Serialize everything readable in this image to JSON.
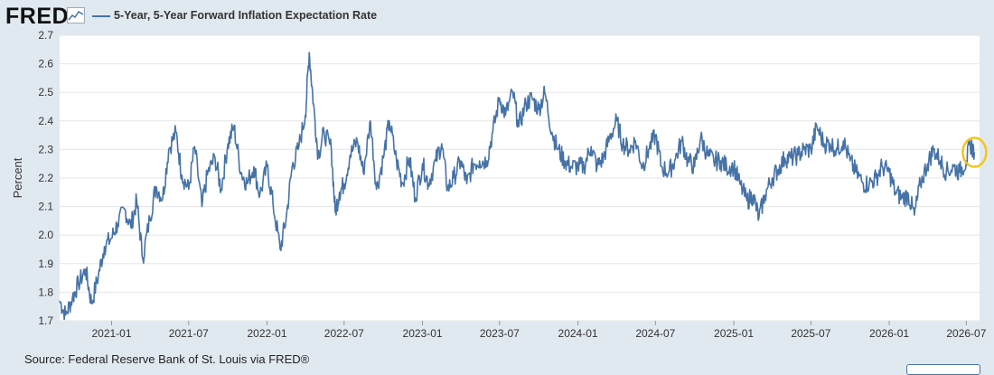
{
  "brand": {
    "logo_text": "FRED",
    "trend_icon": "line-chart-icon"
  },
  "legend": {
    "label": "5-Year, 5-Year Forward Inflation Expectation Rate",
    "color": "#4572a7"
  },
  "highlight": {
    "color": "#f5c518",
    "note": "circled latest value"
  },
  "source": {
    "text": "Source: Federal Reserve Bank of St. Louis via FRED®"
  },
  "chart_data": {
    "type": "line",
    "title": "",
    "xlabel": "",
    "ylabel": "Percent",
    "ylim": [
      1.7,
      2.7
    ],
    "yticks": [
      "1.7",
      "1.8",
      "1.9",
      "2.0",
      "2.1",
      "2.2",
      "2.3",
      "2.4",
      "2.5",
      "2.6",
      "2.7"
    ],
    "xticks": [
      "2021-01",
      "2021-07",
      "2022-01",
      "2022-07",
      "2023-01",
      "2023-07",
      "2024-01",
      "2024-07",
      "2025-01",
      "2025-07",
      "2026-01",
      "2026-07"
    ],
    "xrange": [
      "2020-09",
      "2026-08"
    ],
    "grid": "horizontal",
    "series": [
      {
        "name": "5-Year, 5-Year Forward Inflation Expectation Rate",
        "color": "#4572a7",
        "points": [
          [
            "2020-09-01",
            1.77
          ],
          [
            "2020-09-15",
            1.72
          ],
          [
            "2020-10-01",
            1.78
          ],
          [
            "2020-10-15",
            1.83
          ],
          [
            "2020-11-01",
            1.88
          ],
          [
            "2020-11-15",
            1.76
          ],
          [
            "2020-12-01",
            1.86
          ],
          [
            "2020-12-15",
            1.96
          ],
          [
            "2021-01-01",
            1.99
          ],
          [
            "2021-01-15",
            2.04
          ],
          [
            "2021-02-01",
            2.09
          ],
          [
            "2021-02-15",
            2.03
          ],
          [
            "2021-03-01",
            2.12
          ],
          [
            "2021-03-15",
            1.92
          ],
          [
            "2021-04-01",
            2.06
          ],
          [
            "2021-04-15",
            2.17
          ],
          [
            "2021-05-01",
            2.13
          ],
          [
            "2021-05-15",
            2.3
          ],
          [
            "2021-06-01",
            2.36
          ],
          [
            "2021-06-15",
            2.21
          ],
          [
            "2021-07-01",
            2.16
          ],
          [
            "2021-07-15",
            2.31
          ],
          [
            "2021-08-01",
            2.1
          ],
          [
            "2021-08-15",
            2.22
          ],
          [
            "2021-09-01",
            2.27
          ],
          [
            "2021-09-15",
            2.16
          ],
          [
            "2021-10-01",
            2.32
          ],
          [
            "2021-10-15",
            2.38
          ],
          [
            "2021-11-01",
            2.22
          ],
          [
            "2021-11-15",
            2.18
          ],
          [
            "2021-12-01",
            2.24
          ],
          [
            "2021-12-15",
            2.14
          ],
          [
            "2022-01-01",
            2.24
          ],
          [
            "2022-01-15",
            2.11
          ],
          [
            "2022-02-01",
            1.95
          ],
          [
            "2022-02-15",
            2.06
          ],
          [
            "2022-03-01",
            2.24
          ],
          [
            "2022-03-15",
            2.3
          ],
          [
            "2022-04-01",
            2.42
          ],
          [
            "2022-04-10",
            2.64
          ],
          [
            "2022-04-20",
            2.46
          ],
          [
            "2022-05-01",
            2.28
          ],
          [
            "2022-05-15",
            2.36
          ],
          [
            "2022-06-01",
            2.3
          ],
          [
            "2022-06-10",
            2.08
          ],
          [
            "2022-06-20",
            2.15
          ],
          [
            "2022-07-01",
            2.18
          ],
          [
            "2022-07-15",
            2.28
          ],
          [
            "2022-08-01",
            2.33
          ],
          [
            "2022-08-15",
            2.22
          ],
          [
            "2022-09-01",
            2.4
          ],
          [
            "2022-09-15",
            2.16
          ],
          [
            "2022-10-01",
            2.27
          ],
          [
            "2022-10-15",
            2.4
          ],
          [
            "2022-11-01",
            2.26
          ],
          [
            "2022-11-15",
            2.18
          ],
          [
            "2022-12-01",
            2.27
          ],
          [
            "2022-12-15",
            2.13
          ],
          [
            "2023-01-01",
            2.25
          ],
          [
            "2023-01-15",
            2.18
          ],
          [
            "2023-02-01",
            2.26
          ],
          [
            "2023-02-15",
            2.32
          ],
          [
            "2023-03-01",
            2.16
          ],
          [
            "2023-03-15",
            2.2
          ],
          [
            "2023-04-01",
            2.26
          ],
          [
            "2023-04-15",
            2.18
          ],
          [
            "2023-05-01",
            2.25
          ],
          [
            "2023-05-15",
            2.26
          ],
          [
            "2023-06-01",
            2.26
          ],
          [
            "2023-06-15",
            2.36
          ],
          [
            "2023-07-01",
            2.48
          ],
          [
            "2023-07-15",
            2.42
          ],
          [
            "2023-08-01",
            2.5
          ],
          [
            "2023-08-15",
            2.38
          ],
          [
            "2023-09-01",
            2.46
          ],
          [
            "2023-09-15",
            2.48
          ],
          [
            "2023-10-01",
            2.44
          ],
          [
            "2023-10-15",
            2.5
          ],
          [
            "2023-11-01",
            2.36
          ],
          [
            "2023-11-15",
            2.3
          ],
          [
            "2023-12-01",
            2.26
          ],
          [
            "2023-12-15",
            2.24
          ],
          [
            "2024-01-01",
            2.24
          ],
          [
            "2024-01-15",
            2.24
          ],
          [
            "2024-02-01",
            2.31
          ],
          [
            "2024-02-15",
            2.24
          ],
          [
            "2024-03-01",
            2.27
          ],
          [
            "2024-03-15",
            2.34
          ],
          [
            "2024-04-01",
            2.4
          ],
          [
            "2024-04-15",
            2.32
          ],
          [
            "2024-05-01",
            2.3
          ],
          [
            "2024-05-15",
            2.33
          ],
          [
            "2024-06-01",
            2.24
          ],
          [
            "2024-06-15",
            2.3
          ],
          [
            "2024-07-01",
            2.35
          ],
          [
            "2024-07-15",
            2.24
          ],
          [
            "2024-08-01",
            2.22
          ],
          [
            "2024-08-15",
            2.26
          ],
          [
            "2024-09-01",
            2.33
          ],
          [
            "2024-09-15",
            2.26
          ],
          [
            "2024-10-01",
            2.24
          ],
          [
            "2024-10-15",
            2.34
          ],
          [
            "2024-11-01",
            2.28
          ],
          [
            "2024-11-15",
            2.26
          ],
          [
            "2024-12-01",
            2.26
          ],
          [
            "2024-12-15",
            2.24
          ],
          [
            "2025-01-01",
            2.24
          ],
          [
            "2025-01-15",
            2.18
          ],
          [
            "2025-02-01",
            2.12
          ],
          [
            "2025-02-15",
            2.14
          ],
          [
            "2025-03-01",
            2.06
          ],
          [
            "2025-03-15",
            2.14
          ],
          [
            "2025-04-01",
            2.2
          ],
          [
            "2025-04-15",
            2.23
          ],
          [
            "2025-05-01",
            2.27
          ],
          [
            "2025-05-15",
            2.27
          ],
          [
            "2025-06-01",
            2.28
          ],
          [
            "2025-06-15",
            2.3
          ],
          [
            "2025-07-01",
            2.3
          ],
          [
            "2025-07-15",
            2.38
          ],
          [
            "2025-08-01",
            2.32
          ],
          [
            "2025-08-15",
            2.32
          ],
          [
            "2025-09-01",
            2.3
          ],
          [
            "2025-09-15",
            2.33
          ],
          [
            "2025-10-01",
            2.26
          ],
          [
            "2025-10-15",
            2.22
          ],
          [
            "2025-11-01",
            2.18
          ],
          [
            "2025-11-15",
            2.18
          ],
          [
            "2025-12-01",
            2.2
          ],
          [
            "2025-12-15",
            2.24
          ],
          [
            "2026-01-01",
            2.22
          ],
          [
            "2026-01-15",
            2.15
          ],
          [
            "2026-02-01",
            2.13
          ],
          [
            "2026-02-15",
            2.14
          ],
          [
            "2026-03-01",
            2.07
          ],
          [
            "2026-03-15",
            2.18
          ],
          [
            "2026-04-01",
            2.25
          ],
          [
            "2026-04-15",
            2.3
          ],
          [
            "2026-05-01",
            2.26
          ],
          [
            "2026-05-15",
            2.22
          ],
          [
            "2026-06-01",
            2.24
          ],
          [
            "2026-06-15",
            2.22
          ],
          [
            "2026-07-01",
            2.26
          ],
          [
            "2026-07-10",
            2.32
          ],
          [
            "2026-07-20",
            2.29
          ]
        ]
      }
    ]
  }
}
